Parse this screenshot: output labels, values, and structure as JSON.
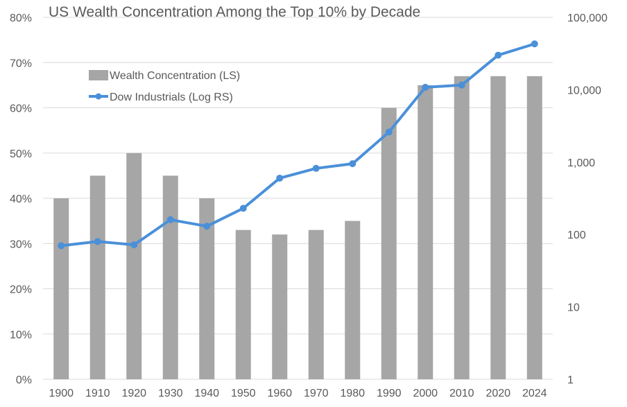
{
  "chart_data": {
    "type": "bar+line",
    "title": "US Wealth Concentration Among the Top 10% by Decade",
    "categories": [
      "1900",
      "1910",
      "1920",
      "1930",
      "1940",
      "1950",
      "1960",
      "1970",
      "1980",
      "1990",
      "2000",
      "2010",
      "2020",
      "2024"
    ],
    "series": [
      {
        "name": "Wealth Concentration (LS)",
        "type": "bar",
        "axis": "left",
        "color": "#a6a6a6",
        "values": [
          40,
          45,
          50,
          45,
          40,
          33,
          32,
          33,
          35,
          60,
          65,
          67,
          67,
          67
        ]
      },
      {
        "name": "Dow Industrials (Log RS)",
        "type": "line",
        "axis": "right",
        "color": "#4a90d9",
        "values": [
          70,
          80,
          72,
          160,
          130,
          230,
          600,
          820,
          950,
          2600,
          10800,
          11600,
          30000,
          43000
        ]
      }
    ],
    "y_left": {
      "ticks": [
        0,
        10,
        20,
        30,
        40,
        50,
        60,
        70,
        80
      ],
      "tick_labels": [
        "0%",
        "10%",
        "20%",
        "30%",
        "40%",
        "50%",
        "60%",
        "70%",
        "80%"
      ],
      "lim": [
        0,
        80
      ]
    },
    "y_right": {
      "scale": "log",
      "ticks": [
        1,
        10,
        100,
        1000,
        10000,
        100000
      ],
      "tick_labels": [
        "1",
        "10",
        "100",
        "1,000",
        "10,000",
        "100,000"
      ],
      "lim": [
        1,
        100000
      ]
    },
    "grid": "horizontal",
    "legend_position": "top-left"
  }
}
